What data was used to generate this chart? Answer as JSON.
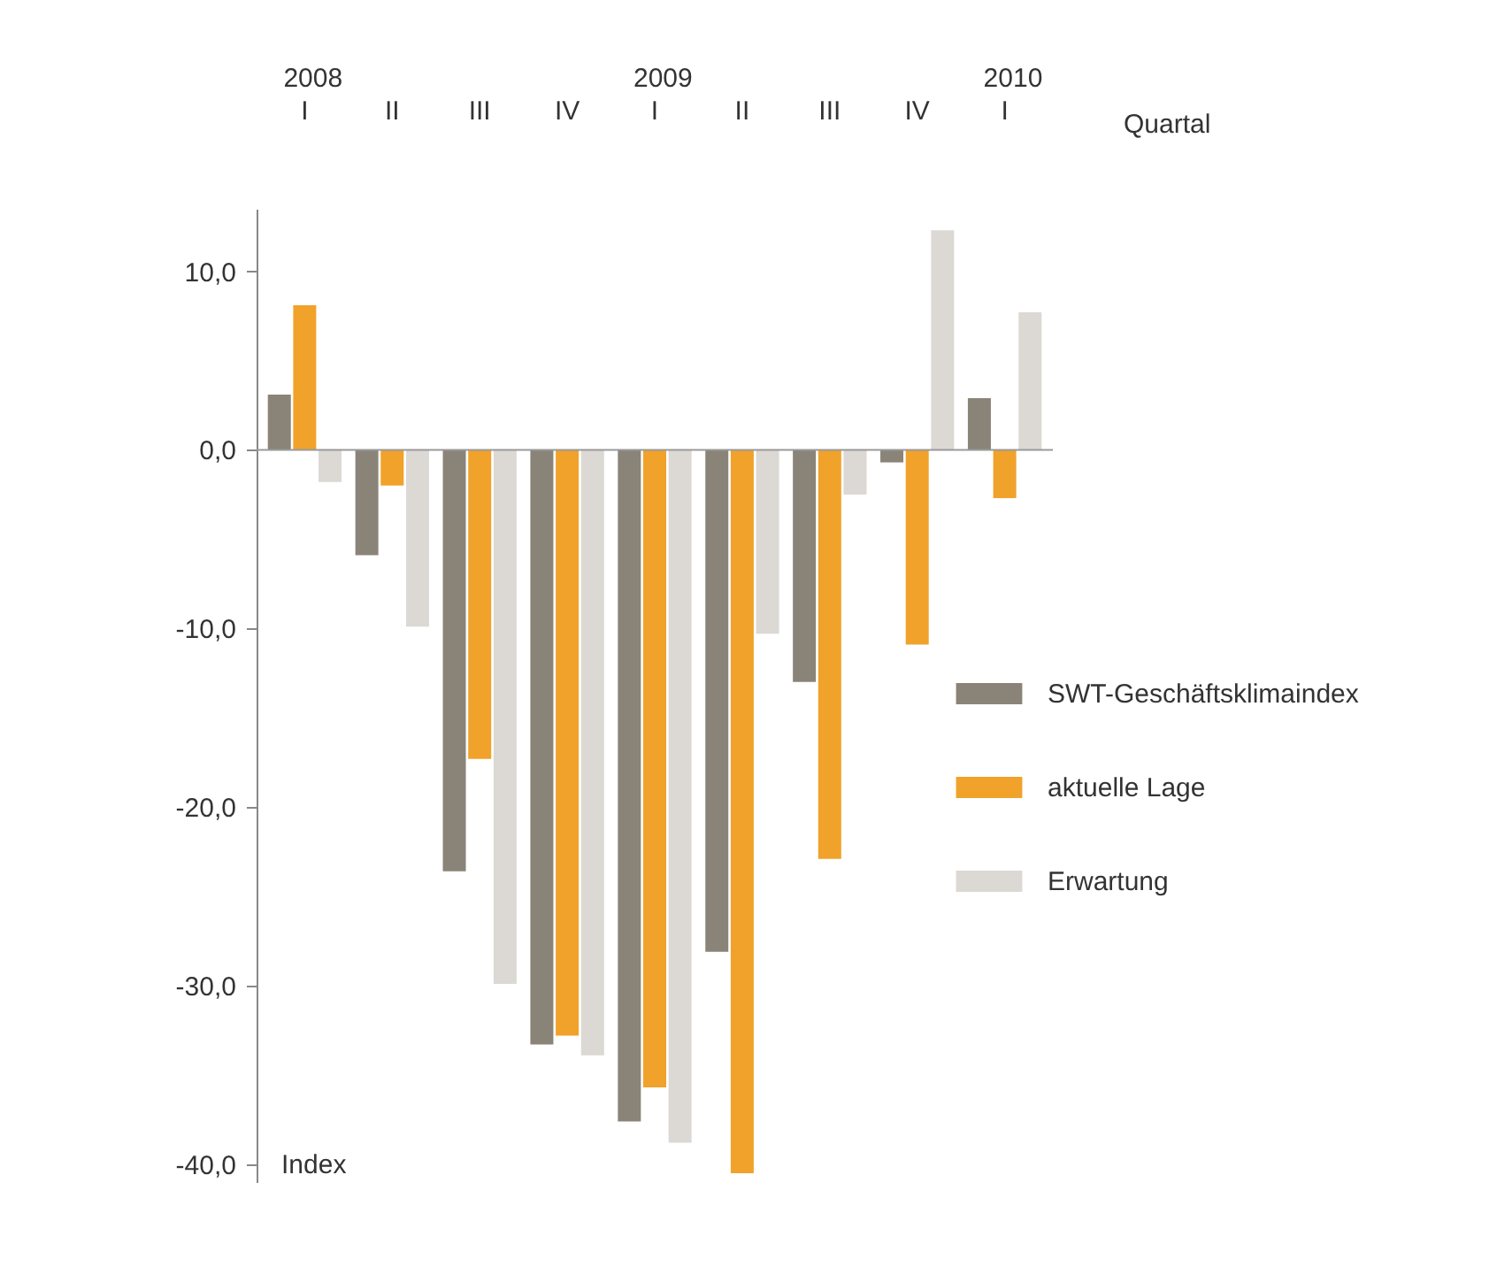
{
  "chart_data": {
    "type": "bar",
    "xlabel": "Quartal",
    "ylabel": "Index",
    "categories": [
      "I",
      "II",
      "III",
      "IV",
      "I",
      "II",
      "III",
      "IV",
      "I"
    ],
    "annotations": [
      "2008",
      "2009",
      "2010"
    ],
    "series": [
      {
        "name": "SWT-Geschäftsklimaindex",
        "color": "#8a8478",
        "values": [
          3.1,
          -5.9,
          -23.6,
          -33.3,
          -37.6,
          -28.1,
          -13.0,
          -0.7,
          2.9
        ]
      },
      {
        "name": "aktuelle Lage",
        "color": "#f0a22a",
        "values": [
          8.1,
          -2.0,
          -17.3,
          -32.8,
          -35.7,
          -40.5,
          -22.9,
          -10.9,
          -2.7
        ]
      },
      {
        "name": "Erwartung",
        "color": "#dcd8d4",
        "values": [
          -1.8,
          -9.9,
          -29.9,
          -33.9,
          -38.8,
          -10.3,
          -2.5,
          12.3,
          7.7
        ]
      }
    ],
    "ylim": [
      -41,
      13.5
    ],
    "yticks": [
      {
        "value": 10,
        "label": "10,0"
      },
      {
        "value": 0,
        "label": "0,0"
      },
      {
        "value": -10,
        "label": "-10,0"
      },
      {
        "value": -20,
        "label": "-20,0"
      },
      {
        "value": -30,
        "label": "-30,0"
      },
      {
        "value": -40,
        "label": "-40,0"
      }
    ],
    "ref_lines": [
      {
        "axis": "y",
        "value": 0,
        "color": "#999999"
      }
    ],
    "grid": false,
    "legend": "right"
  }
}
